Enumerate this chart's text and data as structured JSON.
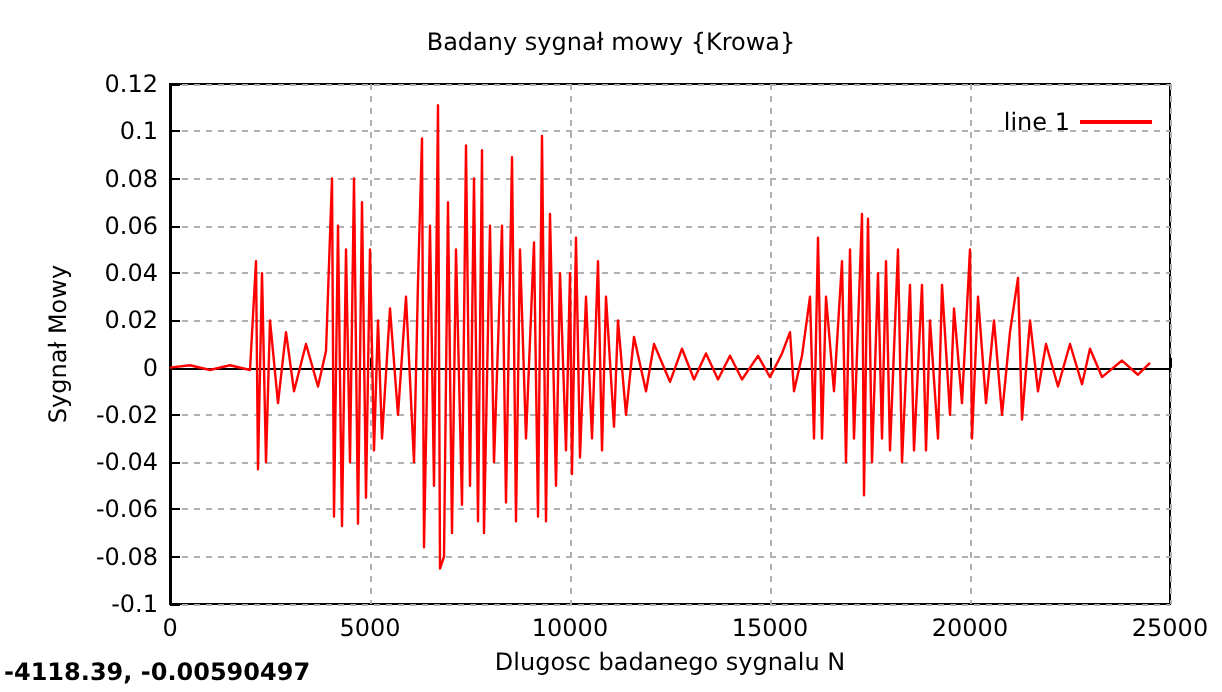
{
  "chart_data": {
    "type": "line",
    "title": "Badany sygnał mowy {Krowa}",
    "xlabel": "Dlugosc badanego sygnalu N",
    "ylabel": "Sygnał Mowy",
    "annotations": [
      "-4118.39, -0.00590497"
    ],
    "xlim": [
      0,
      25000
    ],
    "xticks": [
      0,
      5000,
      10000,
      15000,
      20000,
      25000
    ],
    "ylim": [
      -0.1,
      0.12
    ],
    "yticks": [
      -0.1,
      -0.08,
      -0.06,
      -0.04,
      -0.02,
      0,
      0.02,
      0.04,
      0.06,
      0.08,
      0.1,
      0.12
    ],
    "grid": true,
    "legend": "top right",
    "marker": "none",
    "line_style": "solid",
    "series": [
      {
        "name": "line 1",
        "color": "#ff0000",
        "x": [
          0,
          500,
          1000,
          1500,
          2000,
          2150,
          2200,
          2300,
          2400,
          2500,
          2700,
          2900,
          3100,
          3400,
          3700,
          3900,
          4050,
          4100,
          4200,
          4300,
          4400,
          4500,
          4600,
          4700,
          4800,
          4900,
          5000,
          5100,
          5200,
          5300,
          5500,
          5700,
          5900,
          6100,
          6200,
          6300,
          6350,
          6500,
          6600,
          6700,
          6750,
          6850,
          6950,
          7050,
          7150,
          7300,
          7400,
          7500,
          7600,
          7700,
          7800,
          7850,
          8000,
          8100,
          8300,
          8400,
          8550,
          8650,
          8750,
          8900,
          9100,
          9200,
          9300,
          9400,
          9500,
          9650,
          9750,
          9900,
          10000,
          10050,
          10150,
          10250,
          10400,
          10550,
          10700,
          10800,
          10900,
          11100,
          11200,
          11400,
          11600,
          11900,
          12100,
          12500,
          12800,
          13100,
          13400,
          13700,
          14000,
          14300,
          14700,
          15000,
          15300,
          15500,
          15600,
          15800,
          16000,
          16100,
          16200,
          16300,
          16400,
          16600,
          16800,
          16900,
          17000,
          17100,
          17300,
          17350,
          17450,
          17550,
          17700,
          17800,
          17900,
          18000,
          18200,
          18300,
          18500,
          18600,
          18800,
          18900,
          19000,
          19200,
          19300,
          19500,
          19600,
          19800,
          20000,
          20050,
          20200,
          20400,
          20600,
          20800,
          21000,
          21200,
          21300,
          21500,
          21700,
          21900,
          22200,
          22500,
          22800,
          23000,
          23300,
          23800,
          24200,
          24500
        ],
        "values": [
          0,
          0.001,
          -0.001,
          0.001,
          -0.001,
          0.045,
          -0.043,
          0.04,
          -0.04,
          0.02,
          -0.015,
          0.015,
          -0.01,
          0.01,
          -0.008,
          0.007,
          0.08,
          -0.063,
          0.06,
          -0.067,
          0.05,
          -0.04,
          0.08,
          -0.066,
          0.07,
          -0.055,
          0.05,
          -0.035,
          0.02,
          -0.03,
          0.025,
          -0.02,
          0.03,
          -0.04,
          0.036,
          0.097,
          -0.076,
          0.06,
          -0.05,
          0.111,
          -0.085,
          -0.08,
          0.07,
          -0.07,
          0.05,
          -0.058,
          0.094,
          -0.05,
          0.08,
          -0.065,
          0.092,
          -0.07,
          0.06,
          -0.04,
          0.06,
          -0.057,
          0.089,
          -0.065,
          0.05,
          -0.03,
          0.053,
          -0.063,
          0.098,
          -0.065,
          0.065,
          -0.05,
          0.04,
          -0.035,
          0.04,
          -0.045,
          0.055,
          -0.038,
          0.03,
          -0.03,
          0.045,
          -0.035,
          0.03,
          -0.025,
          0.02,
          -0.02,
          0.013,
          -0.01,
          0.01,
          -0.006,
          0.008,
          -0.005,
          0.006,
          -0.005,
          0.005,
          -0.005,
          0.005,
          -0.004,
          0.006,
          0.015,
          -0.01,
          0.005,
          0.03,
          -0.03,
          0.055,
          -0.03,
          0.03,
          -0.01,
          0.045,
          -0.04,
          0.05,
          -0.03,
          0.065,
          -0.054,
          0.063,
          -0.04,
          0.04,
          -0.03,
          0.045,
          -0.035,
          0.05,
          -0.04,
          0.035,
          -0.035,
          0.035,
          -0.035,
          0.02,
          -0.03,
          0.035,
          -0.02,
          0.025,
          -0.015,
          0.05,
          -0.03,
          0.03,
          -0.015,
          0.02,
          -0.02,
          0.015,
          0.038,
          -0.022,
          0.02,
          -0.01,
          0.01,
          -0.008,
          0.01,
          -0.007,
          0.008,
          -0.004,
          0.003,
          -0.003,
          0.002
        ]
      }
    ]
  }
}
